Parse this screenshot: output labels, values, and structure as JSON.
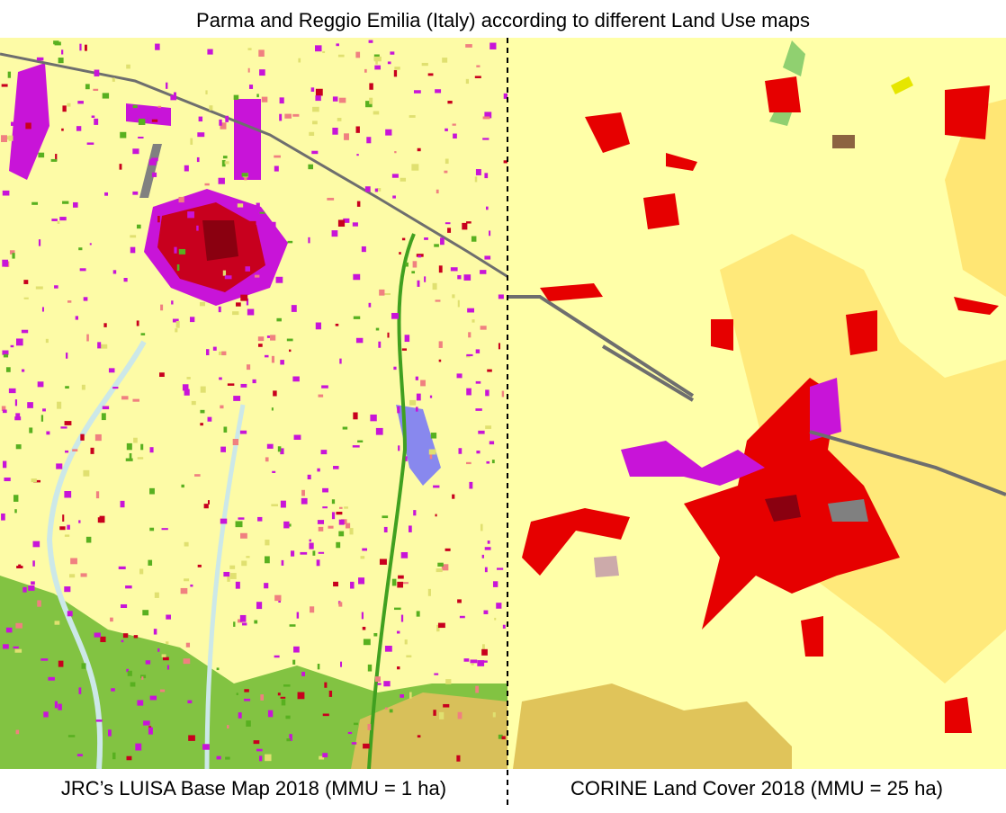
{
  "header": {
    "title": "Parma and Reggio Emilia (Italy) according to different Land Use maps"
  },
  "captions": {
    "left": "JRC’s LUISA Base Map 2018 (MMU = 1 ha)",
    "right": "CORINE Land Cover 2018 (MMU = 25 ha)"
  }
}
